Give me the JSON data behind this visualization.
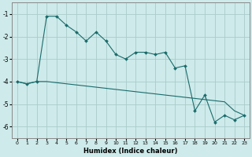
{
  "title": "",
  "xlabel": "Humidex (Indice chaleur)",
  "ylabel": "",
  "background_color": "#ceeaea",
  "grid_color": "#aacccc",
  "line_color": "#1a6b6b",
  "x_values": [
    0,
    1,
    2,
    3,
    4,
    5,
    6,
    7,
    8,
    9,
    10,
    11,
    12,
    13,
    14,
    15,
    16,
    17,
    18,
    19,
    20,
    21,
    22,
    23
  ],
  "y_curve": [
    -4.0,
    -4.1,
    -4.0,
    -1.1,
    -1.1,
    -1.5,
    -1.8,
    -2.2,
    -1.8,
    -2.2,
    -2.8,
    -3.0,
    -2.7,
    -2.7,
    -2.8,
    -2.7,
    -3.4,
    -3.3,
    -5.3,
    -4.6,
    -5.8,
    -5.5,
    -5.7,
    -5.5
  ],
  "y_line": [
    -4.0,
    -4.1,
    -4.0,
    -4.0,
    -4.05,
    -4.1,
    -4.15,
    -4.2,
    -4.25,
    -4.3,
    -4.35,
    -4.4,
    -4.45,
    -4.5,
    -4.55,
    -4.6,
    -4.65,
    -4.7,
    -4.75,
    -4.8,
    -4.85,
    -4.9,
    -5.3,
    -5.5
  ],
  "xlim": [
    -0.5,
    23.5
  ],
  "ylim": [
    -6.5,
    -0.5
  ],
  "yticks": [
    -1,
    -2,
    -3,
    -4,
    -5,
    -6
  ],
  "xticks": [
    0,
    1,
    2,
    3,
    4,
    5,
    6,
    7,
    8,
    9,
    10,
    11,
    12,
    13,
    14,
    15,
    16,
    17,
    18,
    19,
    20,
    21,
    22,
    23
  ]
}
